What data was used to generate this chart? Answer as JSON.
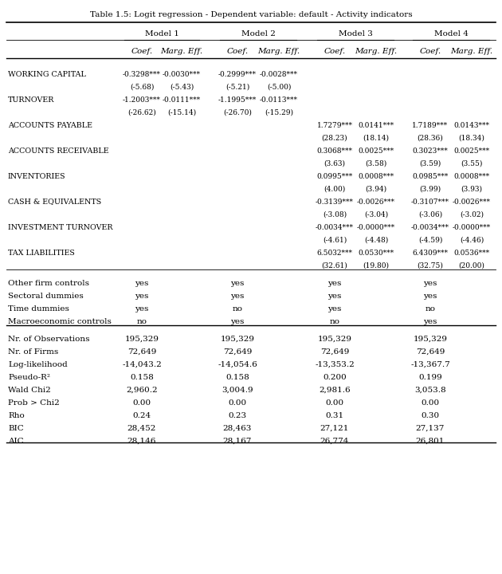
{
  "title": "Table 1.5: Logit regression - Dependent variable: default - Activity indicators",
  "models": [
    "Model 1",
    "Model 2",
    "Model 3",
    "Model 4"
  ],
  "col_headers": [
    "Coef.",
    "Marg. Eff.",
    "Coef.",
    "Marg. Eff.",
    "Coef.",
    "Marg. Eff.",
    "Coef.",
    "Marg. Eff."
  ],
  "rows": [
    {
      "label": "WORKING CAPITAL",
      "values": [
        "-0.3298***",
        "-0.0030***",
        "-0.2999***",
        "-0.0028***",
        "",
        "",
        "",
        ""
      ]
    },
    {
      "label": "",
      "values": [
        "(-5.68)",
        "(-5.43)",
        "(-5.21)",
        "(-5.00)",
        "",
        "",
        "",
        ""
      ]
    },
    {
      "label": "TURNOVER",
      "values": [
        "-1.2003***",
        "-0.0111***",
        "-1.1995***",
        "-0.0113***",
        "",
        "",
        "",
        ""
      ]
    },
    {
      "label": "",
      "values": [
        "(-26.62)",
        "(-15.14)",
        "(-26.70)",
        "(-15.29)",
        "",
        "",
        "",
        ""
      ]
    },
    {
      "label": "ACCOUNTS PAYABLE",
      "values": [
        "",
        "",
        "",
        "",
        "1.7279***",
        "0.0141***",
        "1.7189***",
        "0.0143***"
      ]
    },
    {
      "label": "",
      "values": [
        "",
        "",
        "",
        "",
        "(28.23)",
        "(18.14)",
        "(28.36)",
        "(18.34)"
      ]
    },
    {
      "label": "ACCOUNTS RECEIVABLE",
      "values": [
        "",
        "",
        "",
        "",
        "0.3068***",
        "0.0025***",
        "0.3023***",
        "0.0025***"
      ]
    },
    {
      "label": "",
      "values": [
        "",
        "",
        "",
        "",
        "(3.63)",
        "(3.58)",
        "(3.59)",
        "(3.55)"
      ]
    },
    {
      "label": "INVENTORIES",
      "values": [
        "",
        "",
        "",
        "",
        "0.0995***",
        "0.0008***",
        "0.0985***",
        "0.0008***"
      ]
    },
    {
      "label": "",
      "values": [
        "",
        "",
        "",
        "",
        "(4.00)",
        "(3.94)",
        "(3.99)",
        "(3.93)"
      ]
    },
    {
      "label": "CASH & EQUIVALENTS",
      "values": [
        "",
        "",
        "",
        "",
        "-0.3139***",
        "-0.0026***",
        "-0.3107***",
        "-0.0026***"
      ]
    },
    {
      "label": "",
      "values": [
        "",
        "",
        "",
        "",
        "(-3.08)",
        "(-3.04)",
        "(-3.06)",
        "(-3.02)"
      ]
    },
    {
      "label": "INVESTMENT TURNOVER",
      "values": [
        "",
        "",
        "",
        "",
        "-0.0034***",
        "-0.0000***",
        "-0.0034***",
        "-0.0000***"
      ]
    },
    {
      "label": "",
      "values": [
        "",
        "",
        "",
        "",
        "(-4.61)",
        "(-4.48)",
        "(-4.59)",
        "(-4.46)"
      ]
    },
    {
      "label": "TAX LIABILITIES",
      "values": [
        "",
        "",
        "",
        "",
        "6.5032***",
        "0.0530***",
        "6.4309***",
        "0.0536***"
      ]
    },
    {
      "label": "",
      "values": [
        "",
        "",
        "",
        "",
        "(32.61)",
        "(19.80)",
        "(32.75)",
        "(20.00)"
      ]
    }
  ],
  "controls": [
    {
      "label": "Other firm controls",
      "values": [
        "yes",
        "yes",
        "yes",
        "yes"
      ]
    },
    {
      "label": "Sectoral dummies",
      "values": [
        "yes",
        "yes",
        "yes",
        "yes"
      ]
    },
    {
      "label": "Time dummies",
      "values": [
        "yes",
        "no",
        "yes",
        "no"
      ]
    },
    {
      "label": "Macroeconomic controls",
      "values": [
        "no",
        "yes",
        "no",
        "yes"
      ]
    }
  ],
  "stats": [
    {
      "label": "Nr. of Observations",
      "values": [
        "195,329",
        "195,329",
        "195,329",
        "195,329"
      ]
    },
    {
      "label": "Nr. of Firms",
      "values": [
        "72,649",
        "72,649",
        "72,649",
        "72,649"
      ]
    },
    {
      "label": "Log-likelihood",
      "values": [
        "-14,043.2",
        "-14,054.6",
        "-13,353.2",
        "-13,367.7"
      ]
    },
    {
      "label": "Pseudo-R²",
      "values": [
        "0.158",
        "0.158",
        "0.200",
        "0.199"
      ]
    },
    {
      "label": "Wald Chi2",
      "values": [
        "2,960.2",
        "3,004.9",
        "2,981.6",
        "3,053.8"
      ]
    },
    {
      "label": "Prob > Chi2",
      "values": [
        "0.00",
        "0.00",
        "0.00",
        "0.00"
      ]
    },
    {
      "label": "Rho",
      "values": [
        "0.24",
        "0.23",
        "0.31",
        "0.30"
      ]
    },
    {
      "label": "BIC",
      "values": [
        "28,452",
        "28,463",
        "27,121",
        "27,137"
      ]
    },
    {
      "label": "AIC",
      "values": [
        "28,146",
        "28,167",
        "26,774",
        "26,801"
      ]
    }
  ],
  "bg_color": "#ffffff",
  "text_color": "#000000"
}
